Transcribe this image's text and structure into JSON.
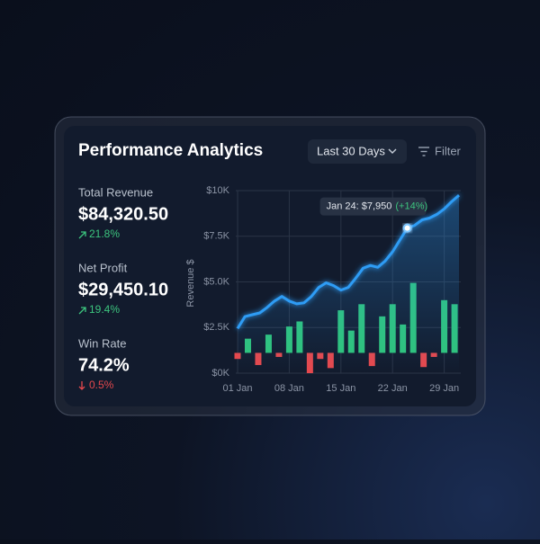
{
  "header": {
    "title": "Performance Analytics",
    "range_button": "Last 30 Days",
    "filter": "Filter"
  },
  "metrics": [
    {
      "label": "Total Revenue",
      "value": "$84,320.50",
      "change": "21.8%",
      "direction": "up"
    },
    {
      "label": "Net Profit",
      "value": "$29,450.10",
      "change": "19.4%",
      "direction": "up"
    },
    {
      "label": "Win Rate",
      "value": "74.2%",
      "change": "0.5%",
      "direction": "down"
    }
  ],
  "chart_data": {
    "type": "line-bar",
    "y_label": "Revenue $",
    "xlim": [
      1,
      31
    ],
    "xticks": [
      {
        "value": 1,
        "label": "01 Jan"
      },
      {
        "value": 8,
        "label": "08 Jan"
      },
      {
        "value": 15,
        "label": "15 Jan"
      },
      {
        "value": 22,
        "label": "22 Jan"
      },
      {
        "value": 29,
        "label": "29 Jan"
      }
    ],
    "ylim": [
      0,
      10000
    ],
    "yticks": [
      {
        "value": 0,
        "label": "$0K"
      },
      {
        "value": 2500,
        "label": "$2.5K"
      },
      {
        "value": 5000,
        "label": "$5.0K"
      },
      {
        "value": 7500,
        "label": "$7.5K"
      },
      {
        "value": 10000,
        "label": "$10K"
      }
    ],
    "y2lim": [
      -1000,
      8000
    ],
    "grid": true,
    "series": [
      {
        "type": "line",
        "color": "#2e9cf5",
        "x": [
          1,
          2,
          3,
          4,
          5,
          6,
          7,
          8,
          9,
          10,
          11,
          12,
          13,
          14,
          15,
          16,
          17,
          18,
          19,
          20,
          21,
          22,
          23,
          24,
          25,
          26,
          27,
          28,
          29,
          30,
          31
        ],
        "values": [
          2450,
          3100,
          3200,
          3300,
          3600,
          3950,
          4200,
          3950,
          3800,
          3850,
          4200,
          4700,
          4950,
          4800,
          4550,
          4700,
          5200,
          5750,
          5900,
          5800,
          6150,
          6650,
          7300,
          7950,
          8100,
          8400,
          8500,
          8700,
          9000,
          9400,
          9750
        ]
      },
      {
        "type": "bar",
        "axis": "y2",
        "color": "#2fc47a",
        "negative_color": "#e5484d",
        "x": [
          1,
          2.4,
          3.8,
          5.2,
          6.6,
          8,
          9.4,
          10.8,
          12.2,
          13.6,
          15,
          16.4,
          17.8,
          19.2,
          20.6,
          22,
          23.4,
          24.8,
          26.2,
          27.6,
          29,
          30.4
        ],
        "values": [
          -300,
          700,
          -600,
          900,
          -200,
          1300,
          1550,
          -1000,
          -300,
          -750,
          2100,
          1100,
          2400,
          -650,
          1800,
          2400,
          1400,
          3450,
          -700,
          -200,
          2600,
          2400
        ]
      }
    ],
    "annotation": {
      "text": "Jan 24: $7,950",
      "change": "(+14%)",
      "series": 0,
      "index": 23
    }
  }
}
